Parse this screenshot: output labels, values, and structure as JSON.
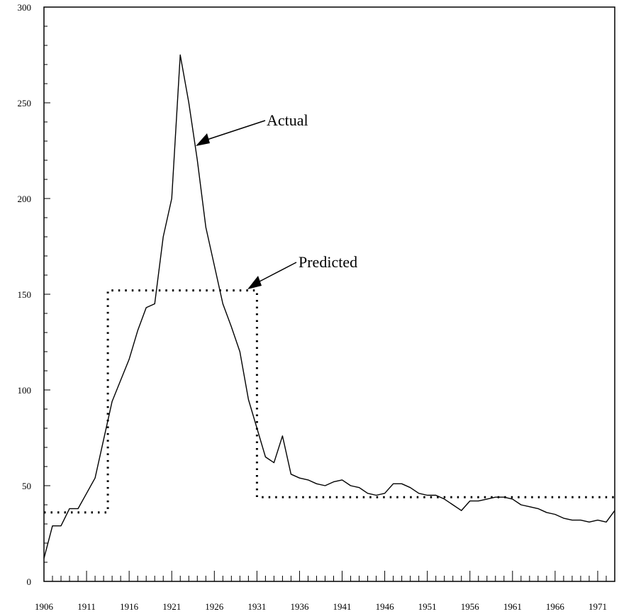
{
  "chart_data": {
    "type": "line",
    "title": "",
    "xlabel": "",
    "ylabel": "",
    "xlim": [
      1906,
      1973
    ],
    "ylim": [
      0,
      300
    ],
    "grid": false,
    "x_tick_labels": [
      "1906",
      "1911",
      "1916",
      "1921",
      "1926",
      "1931",
      "1936",
      "1941",
      "1946",
      "1951",
      "1956",
      "1961",
      "1966",
      "1971"
    ],
    "y_tick_labels": [
      "0",
      "50",
      "100",
      "150",
      "200",
      "250",
      "300"
    ],
    "series": [
      {
        "name": "Actual",
        "style": "solid",
        "x": [
          1906,
          1907,
          1908,
          1909,
          1910,
          1911,
          1912,
          1913,
          1914,
          1915,
          1916,
          1917,
          1918,
          1919,
          1920,
          1921,
          1922,
          1923,
          1924,
          1925,
          1926,
          1927,
          1928,
          1929,
          1930,
          1931,
          1932,
          1933,
          1934,
          1935,
          1936,
          1937,
          1938,
          1939,
          1940,
          1941,
          1942,
          1943,
          1944,
          1945,
          1946,
          1947,
          1948,
          1949,
          1950,
          1951,
          1952,
          1953,
          1954,
          1955,
          1956,
          1957,
          1958,
          1959,
          1960,
          1961,
          1962,
          1963,
          1964,
          1965,
          1966,
          1967,
          1968,
          1969,
          1970,
          1971,
          1972,
          1973
        ],
        "values": [
          12,
          29,
          29,
          38,
          38,
          46,
          54,
          74,
          94,
          105,
          116,
          131,
          143,
          145,
          180,
          200,
          275,
          250,
          220,
          185,
          165,
          145,
          133,
          120,
          95,
          80,
          65,
          62,
          76,
          56,
          54,
          53,
          51,
          50,
          52,
          53,
          50,
          49,
          46,
          45,
          46,
          51,
          51,
          49,
          46,
          45,
          45,
          43,
          40,
          37,
          42,
          42,
          43,
          44,
          44,
          43,
          40,
          39,
          38,
          36,
          35,
          33,
          32,
          32,
          31,
          32,
          31,
          37
        ]
      },
      {
        "name": "Predicted",
        "style": "dotted",
        "x": [
          1906,
          1912.8,
          1912.8,
          1913.5,
          1913.5,
          1929.5,
          1929.5,
          1931,
          1931,
          1973
        ],
        "values": [
          36,
          36,
          36,
          36,
          152,
          152,
          152,
          152,
          44,
          44
        ]
      }
    ],
    "annotations": [
      {
        "text": "Actual",
        "target_series": "Actual"
      },
      {
        "text": "Predicted",
        "target_series": "Predicted"
      }
    ]
  }
}
